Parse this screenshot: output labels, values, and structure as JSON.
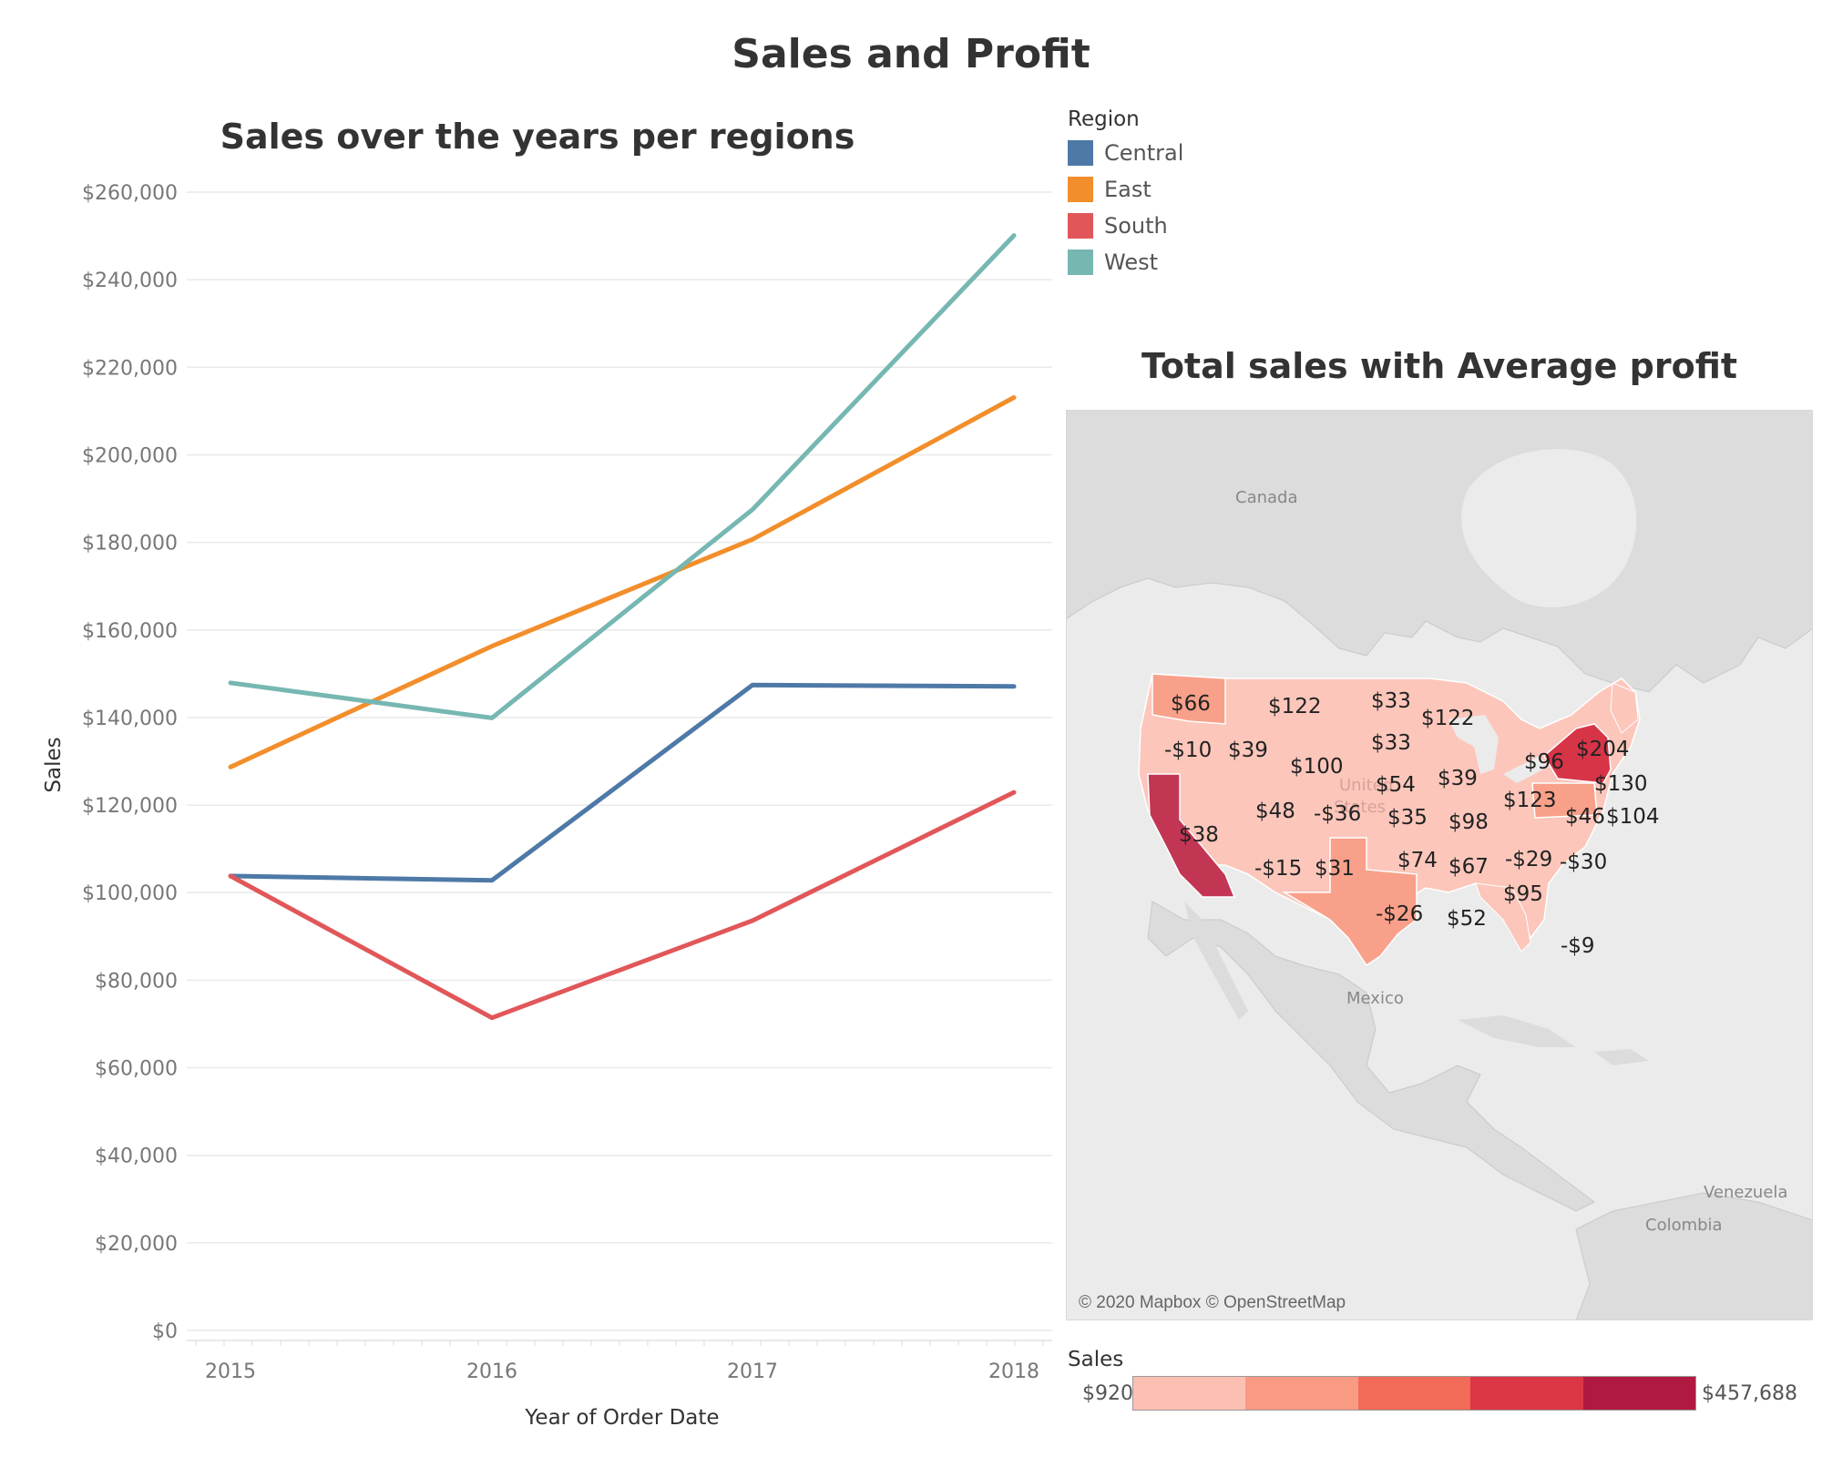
{
  "title": "Sales and Profit",
  "chart_data": [
    {
      "type": "line",
      "title": "Sales over the years per regions",
      "xlabel": "Year of Order Date",
      "ylabel": "Sales",
      "x": [
        "2015",
        "2016",
        "2017",
        "2018"
      ],
      "ylim": [
        0,
        260000
      ],
      "yticks": [
        "$0",
        "$20,000",
        "$40,000",
        "$60,000",
        "$80,000",
        "$100,000",
        "$120,000",
        "$140,000",
        "$160,000",
        "$180,000",
        "$200,000",
        "$220,000",
        "$240,000",
        "$260,000"
      ],
      "grid": true,
      "legend": {
        "title": "Region",
        "placement": "right"
      },
      "series": [
        {
          "name": "Central",
          "color": "#4e79a7",
          "values": [
            103800,
            102800,
            147400,
            147100
          ]
        },
        {
          "name": "East",
          "color": "#f28e2b",
          "values": [
            128700,
            156300,
            180700,
            213100
          ]
        },
        {
          "name": "South",
          "color": "#e15759",
          "values": [
            103800,
            71400,
            93600,
            122900
          ]
        },
        {
          "name": "West",
          "color": "#76b7b2",
          "values": [
            147900,
            139900,
            187500,
            250100
          ]
        }
      ]
    },
    {
      "type": "map",
      "title": "Total sales with Average profit",
      "credit": "© 2020 Mapbox © OpenStreetMap",
      "places": [
        "Canada",
        "Mexico",
        "Colombia",
        "Venezuela",
        "United",
        "States"
      ],
      "color_scale": {
        "title": "Sales",
        "min_label": "$920",
        "max_label": "$457,688",
        "colors": [
          "#fcc0b2",
          "#f99a82",
          "#f26a58",
          "#da3646",
          "#b01a40"
        ]
      },
      "profit_labels": [
        "$66",
        "$122",
        "$33",
        "$122",
        "-$10",
        "$39",
        "$33",
        "$100",
        "$54",
        "$39",
        "$96",
        "$204",
        "$130",
        "$48",
        "-$36",
        "$35",
        "$98",
        "$123",
        "$46",
        "$104",
        "$38",
        "-$15",
        "$31",
        "$74",
        "$67",
        "-$29",
        "-$30",
        "$95",
        "-$26",
        "$52",
        "-$9"
      ]
    }
  ]
}
